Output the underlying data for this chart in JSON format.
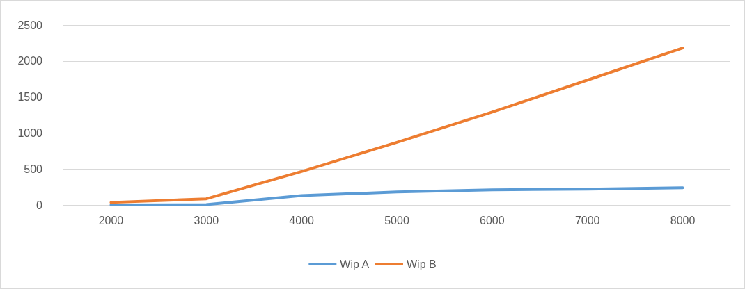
{
  "chart_data": {
    "type": "line",
    "categories": [
      "2000",
      "3000",
      "4000",
      "5000",
      "6000",
      "7000",
      "8000"
    ],
    "series": [
      {
        "name": "Wip A",
        "color": "#5b9bd5",
        "values": [
          0,
          5,
          130,
          180,
          210,
          220,
          240
        ]
      },
      {
        "name": "Wip B",
        "color": "#ed7d31",
        "values": [
          35,
          85,
          465,
          870,
          1290,
          1735,
          2180
        ]
      }
    ],
    "ylim": [
      0,
      2500
    ],
    "yticks": [
      0,
      500,
      1000,
      1500,
      2000,
      2500
    ],
    "grid": "y",
    "legend": "bottom",
    "marker": "none",
    "line_style": "solid"
  }
}
